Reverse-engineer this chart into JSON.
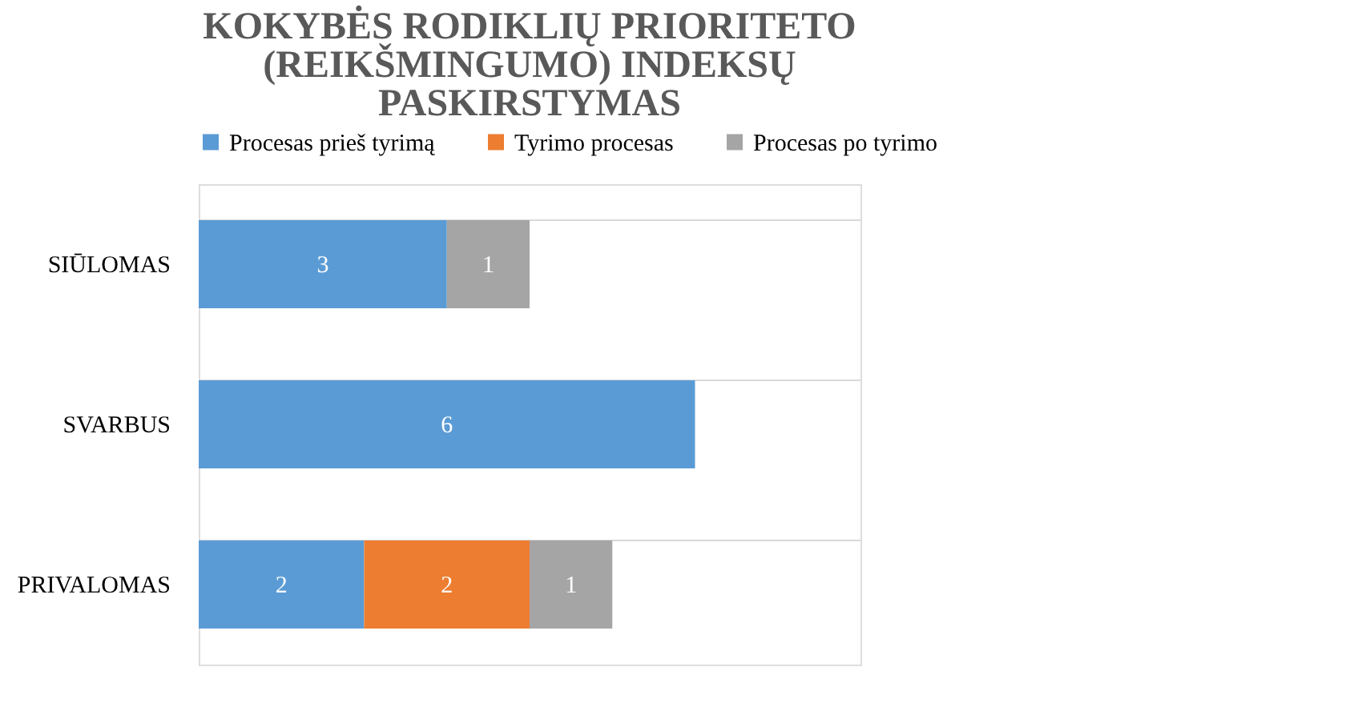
{
  "chart_data": {
    "type": "bar",
    "orientation": "horizontal",
    "stacked": true,
    "title": [
      "KOKYBĖS RODIKLIŲ  PRIORITETO",
      "(REIKŠMINGUMO) INDEKSŲ",
      "PASKIRSTYMAS"
    ],
    "categories": [
      "SIŪLOMAS",
      "SVARBUS",
      "PRIVALOMAS"
    ],
    "series": [
      {
        "name": "Procesas prieš tyrimą",
        "color": "#5b9bd5",
        "values": [
          3,
          6,
          2
        ]
      },
      {
        "name": "Tyrimo procesas",
        "color": "#ed7d31",
        "values": [
          null,
          null,
          2
        ]
      },
      {
        "name": "Procesas po tyrimo",
        "color": "#a5a5a5",
        "values": [
          1,
          null,
          1
        ]
      }
    ],
    "xlim": [
      0,
      8
    ],
    "data_labels": true,
    "legend": "top",
    "grid": "y",
    "tick_labels": "y"
  }
}
